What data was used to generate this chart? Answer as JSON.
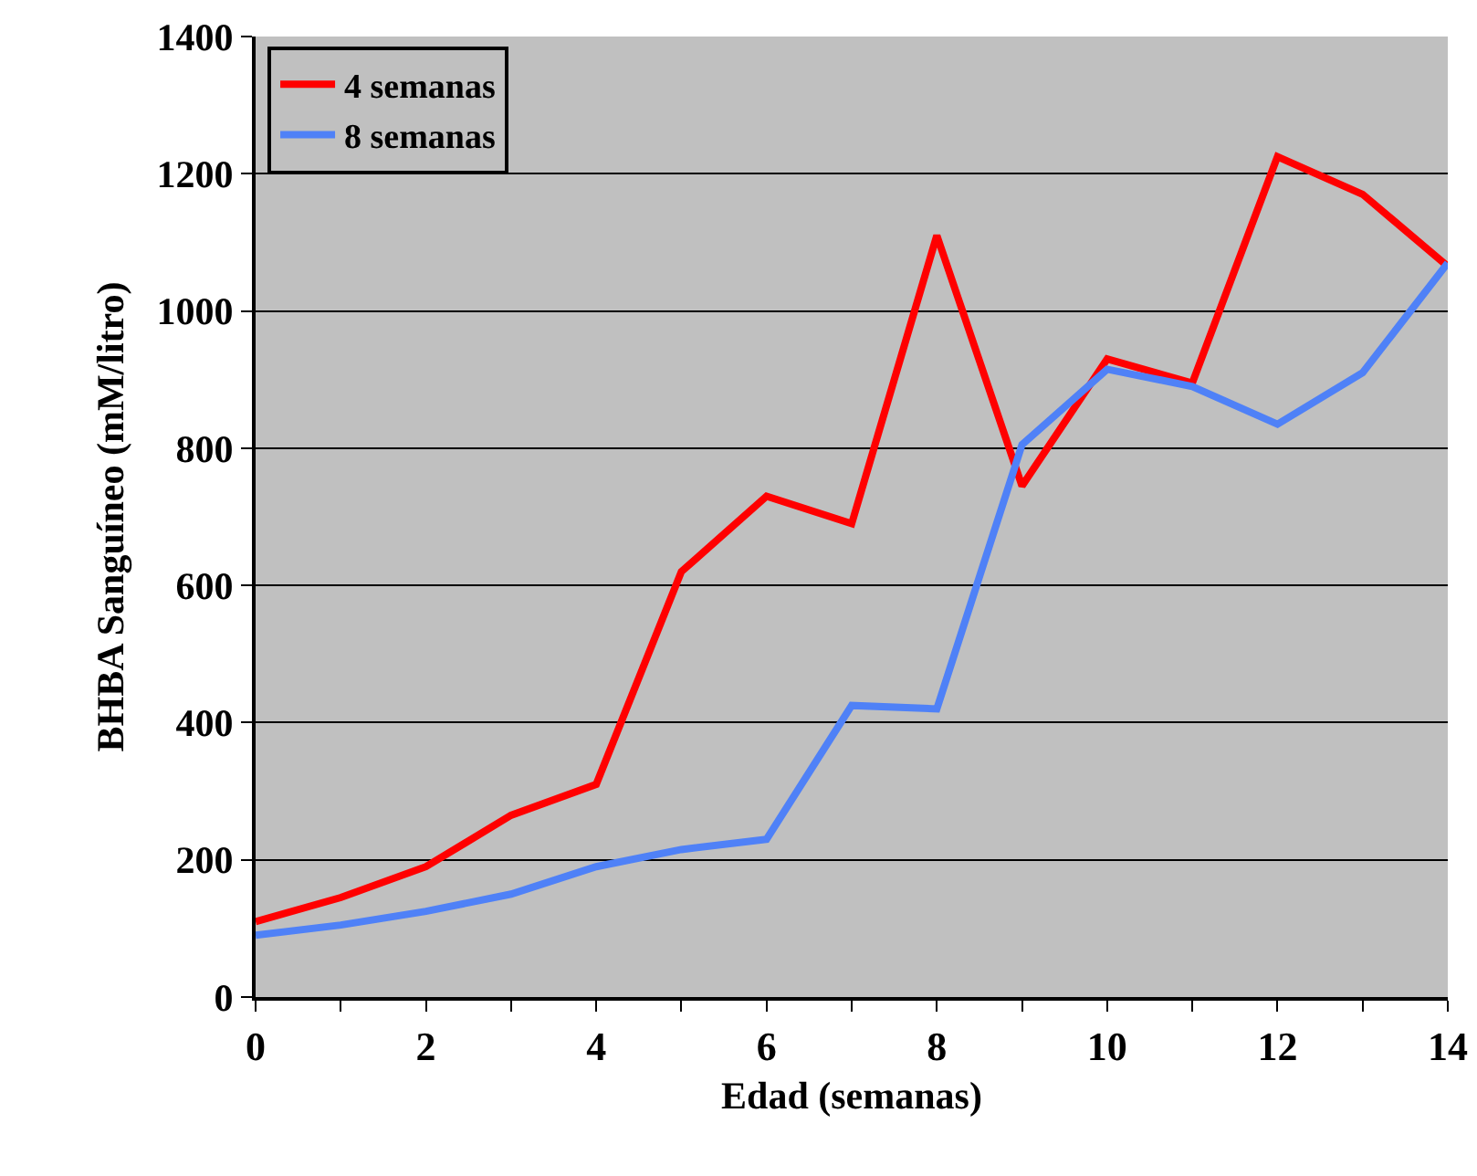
{
  "chart_data": {
    "type": "line",
    "xlabel": "Edad (semanas)",
    "ylabel": "BHBA Sanguíneo (mM/litro)",
    "x": [
      0,
      1,
      2,
      3,
      4,
      5,
      6,
      7,
      8,
      9,
      10,
      11,
      12,
      13,
      14
    ],
    "series": [
      {
        "name": "4 semanas",
        "color": "#ff0000",
        "values": [
          110,
          145,
          190,
          265,
          310,
          620,
          730,
          690,
          1110,
          745,
          930,
          895,
          1225,
          1170,
          1065
        ]
      },
      {
        "name": "8 semanas",
        "color": "#4f81f7",
        "values": [
          90,
          105,
          125,
          150,
          190,
          215,
          230,
          425,
          420,
          805,
          915,
          890,
          835,
          910,
          1070
        ]
      }
    ],
    "xlim": [
      0,
      14
    ],
    "xticks": [
      0,
      {
        "value": 1,
        "label": null
      },
      2,
      {
        "value": 3,
        "label": null
      },
      4,
      {
        "value": 5,
        "label": null
      },
      6,
      {
        "value": 7,
        "label": null
      },
      8,
      {
        "value": 9,
        "label": null
      },
      10,
      {
        "value": 11,
        "label": null
      },
      12,
      {
        "value": 13,
        "label": null
      },
      14
    ],
    "ylim": [
      0,
      1400
    ],
    "yticks": [
      0,
      200,
      400,
      600,
      800,
      1000,
      1200,
      1400
    ],
    "grid": "y",
    "legend": "top left",
    "marker": "none",
    "line_style": "solid"
  }
}
